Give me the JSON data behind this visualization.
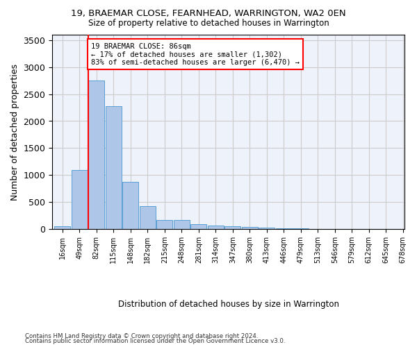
{
  "title1": "19, BRAEMAR CLOSE, FEARNHEAD, WARRINGTON, WA2 0EN",
  "title2": "Size of property relative to detached houses in Warrington",
  "xlabel": "Distribution of detached houses by size in Warrington",
  "ylabel": "Number of detached properties",
  "bar_color": "#aec6e8",
  "bar_edge_color": "#5a9fd4",
  "bar_values": [
    50,
    1100,
    2750,
    2280,
    880,
    430,
    170,
    165,
    90,
    60,
    50,
    35,
    25,
    20,
    10,
    5,
    3,
    2,
    1,
    1
  ],
  "bin_labels": [
    "16sqm",
    "49sqm",
    "82sqm",
    "115sqm",
    "148sqm",
    "182sqm",
    "215sqm",
    "248sqm",
    "281sqm",
    "314sqm",
    "347sqm",
    "380sqm",
    "413sqm",
    "446sqm",
    "479sqm",
    "513sqm",
    "546sqm",
    "579sqm",
    "612sqm",
    "645sqm"
  ],
  "extra_tick": "678sqm",
  "ylim": [
    0,
    3600
  ],
  "yticks": [
    0,
    500,
    1000,
    1500,
    2000,
    2500,
    3000,
    3500
  ],
  "red_line_x": 1.525,
  "annotation_text": "19 BRAEMAR CLOSE: 86sqm\n← 17% of detached houses are smaller (1,302)\n83% of semi-detached houses are larger (6,470) →",
  "footer1": "Contains HM Land Registry data © Crown copyright and database right 2024.",
  "footer2": "Contains public sector information licensed under the Open Government Licence v3.0.",
  "bg_color": "#eef2fb",
  "grid_color": "#cccccc"
}
